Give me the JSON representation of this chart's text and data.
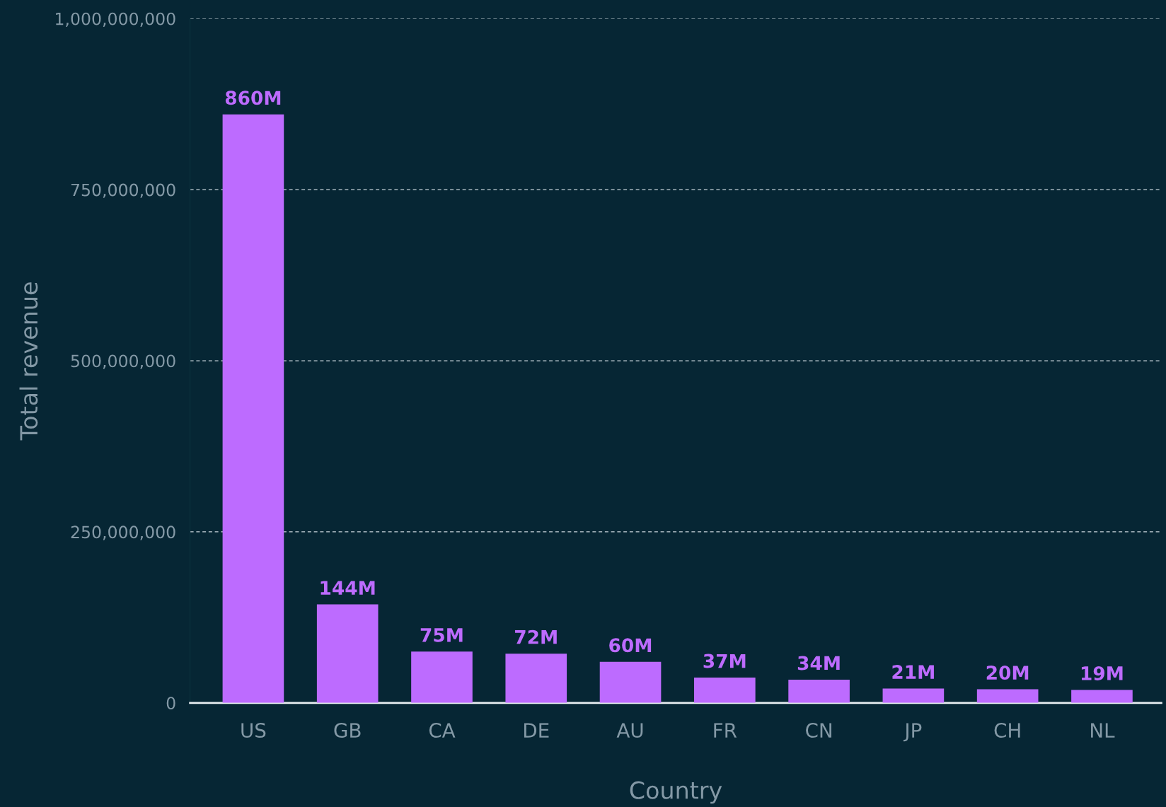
{
  "chart_data": {
    "type": "bar",
    "xlabel": "Country",
    "ylabel": "Total revenue",
    "categories": [
      "US",
      "GB",
      "CA",
      "DE",
      "AU",
      "FR",
      "CN",
      "JP",
      "CH",
      "NL"
    ],
    "values": [
      860000000,
      144000000,
      75000000,
      72000000,
      60000000,
      37000000,
      34000000,
      21000000,
      20000000,
      19000000
    ],
    "value_labels": [
      "860M",
      "144M",
      "75M",
      "72M",
      "60M",
      "37M",
      "34M",
      "21M",
      "20M",
      "19M"
    ],
    "color": "#bd6bff",
    "ylim": [
      0,
      1000000000
    ],
    "yticks": [
      {
        "value": 0,
        "label": "0"
      },
      {
        "value": 250000000,
        "label": "250,000,000"
      },
      {
        "value": 500000000,
        "label": "500,000,000"
      },
      {
        "value": 750000000,
        "label": "750,000,000"
      },
      {
        "value": 1000000000,
        "label": "1,000,000,000"
      }
    ],
    "grid": "y",
    "legend": false
  }
}
